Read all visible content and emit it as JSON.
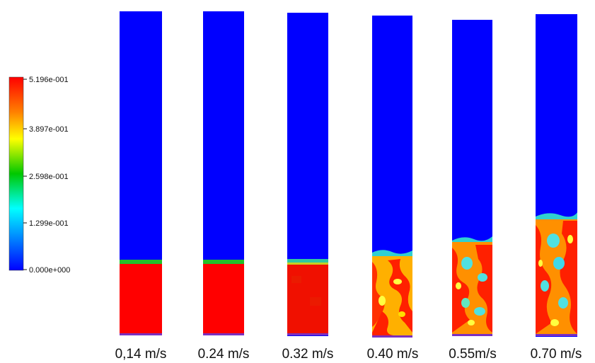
{
  "colorbar": {
    "ticks": [
      "5.196e-001",
      "3.897e-001",
      "2.598e-001",
      "1.299e-001",
      "0.000e+000"
    ],
    "min": 0.0,
    "max": 0.5196,
    "colors": [
      "#ff0000",
      "#ff8000",
      "#ffff00",
      "#00c800",
      "#00ffff",
      "#0080ff",
      "#0000ff"
    ]
  },
  "columns": [
    {
      "label": "0,14 m/s",
      "bed_fraction": 0.21,
      "pattern": "packed"
    },
    {
      "label": "0.24 m/s",
      "bed_fraction": 0.21,
      "pattern": "packed"
    },
    {
      "label": "0.32 m/s",
      "bed_fraction": 0.22,
      "pattern": "dense"
    },
    {
      "label": "0.40 m/s",
      "bed_fraction": 0.26,
      "pattern": "bubbling"
    },
    {
      "label": "0.55m/s",
      "bed_fraction": 0.3,
      "pattern": "bubbling"
    },
    {
      "label": "0.70 m/s",
      "bed_fraction": 0.36,
      "pattern": "bubbling"
    }
  ]
}
